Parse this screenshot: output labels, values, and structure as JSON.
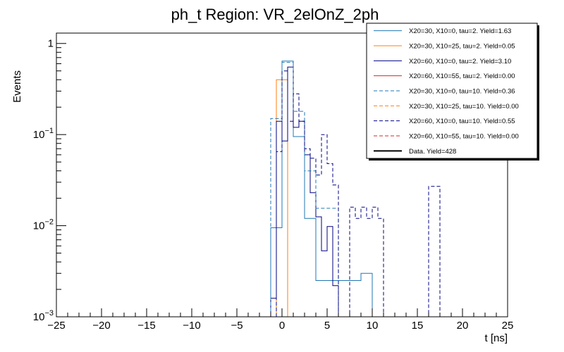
{
  "chart_data": {
    "type": "line",
    "title": "ph_t Region: VR_2elOnZ_2ph",
    "xlabel": "t [ns]",
    "ylabel": "Events",
    "xlim": [
      -25,
      25
    ],
    "ylim": [
      0.001,
      1.3
    ],
    "yscale": "log",
    "bin_width": 1.25,
    "x_ticks": [
      -25,
      -20,
      -15,
      -10,
      -5,
      0,
      5,
      10,
      15,
      20,
      25
    ],
    "y_ticks": [
      {
        "value": 1,
        "base": "1",
        "exp": ""
      },
      {
        "value": 0.1,
        "base": "10",
        "exp": "−1"
      },
      {
        "value": 0.01,
        "base": "10",
        "exp": "−2"
      },
      {
        "value": 0.001,
        "base": "10",
        "exp": "−3"
      }
    ],
    "series": [
      {
        "name": "X20=30, X10=0, tau=2. Yield=1.63",
        "color": "#1f77b4",
        "dashed": false,
        "width": 1,
        "bins": [
          [
            -1.25,
            0.0095
          ],
          [
            0,
            0.64
          ],
          [
            1.25,
            0.095
          ],
          [
            2.5,
            0.012
          ],
          [
            3.75,
            0.0025
          ],
          [
            8.75,
            0.003
          ]
        ]
      },
      {
        "name": "X20=30, X10=25, tau=2. Yield=0.05",
        "color": "#ff7f0e",
        "dashed": false,
        "width": 1,
        "bins": [
          [
            -0.625,
            0.4
          ],
          [
            0.625,
            0.001
          ]
        ]
      },
      {
        "name": "X20=60, X10=0, tau=2. Yield=3.10",
        "color": "#000080",
        "dashed": false,
        "width": 1,
        "bins": [
          [
            -1.25,
            0.0016
          ],
          [
            -0.625,
            0.14
          ],
          [
            0,
            0.085
          ],
          [
            0.625,
            0.55
          ],
          [
            1.25,
            0.12
          ],
          [
            1.875,
            0.14
          ],
          [
            2.5,
            0.06
          ],
          [
            3.125,
            0.023
          ],
          [
            3.75,
            0.0125
          ],
          [
            4.375,
            0.0053
          ],
          [
            5,
            0.0098
          ],
          [
            5.625,
            0.0022
          ],
          [
            6.25,
            0.001
          ]
        ]
      },
      {
        "name": "X20=60, X10=55, tau=2. Yield=0.00",
        "color": "#d62728",
        "dashed": false,
        "width": 1,
        "bins": []
      },
      {
        "name": "X20=30, X10=0, tau=10. Yield=0.36",
        "color": "#1f77b4",
        "dashed": true,
        "width": 1,
        "bins": [
          [
            -1.25,
            0.15
          ],
          [
            0,
            0.62
          ],
          [
            1.25,
            0.18
          ],
          [
            2.5,
            0.04
          ],
          [
            3.75,
            0.0155
          ],
          [
            6.25,
            0.001
          ]
        ]
      },
      {
        "name": "X20=30, X10=25, tau=10. Yield=0.00",
        "color": "#ff7f0e",
        "dashed": true,
        "width": 1,
        "bins": []
      },
      {
        "name": "X20=60, X10=0, tau=10. Yield=0.55",
        "color": "#000080",
        "dashed": true,
        "width": 1,
        "bins": [
          [
            -0.625,
            0.065
          ],
          [
            0,
            0.5
          ],
          [
            0.625,
            0.14
          ],
          [
            1.25,
            0.28
          ],
          [
            1.875,
            0.14
          ],
          [
            2.5,
            0.07
          ],
          [
            3.125,
            0.055
          ],
          [
            3.75,
            0.036
          ],
          [
            4.375,
            0.1
          ],
          [
            5,
            0.048
          ],
          [
            5.625,
            0.028
          ],
          [
            6.25,
            0.001
          ],
          [
            7.5,
            0.016
          ],
          [
            8.125,
            0.012
          ],
          [
            8.75,
            0.016
          ],
          [
            9.375,
            0.012
          ],
          [
            10,
            0.016
          ],
          [
            10.625,
            0.012
          ],
          [
            11.25,
            0.001
          ],
          [
            16.25,
            0.027
          ],
          [
            17.5,
            0.001
          ]
        ]
      },
      {
        "name": "X20=60, X10=55, tau=10. Yield=0.00",
        "color": "#d62728",
        "dashed": true,
        "width": 1,
        "bins": []
      },
      {
        "name": "Data. Yield=428",
        "color": "#000000",
        "dashed": false,
        "width": 2,
        "bins": []
      }
    ]
  }
}
